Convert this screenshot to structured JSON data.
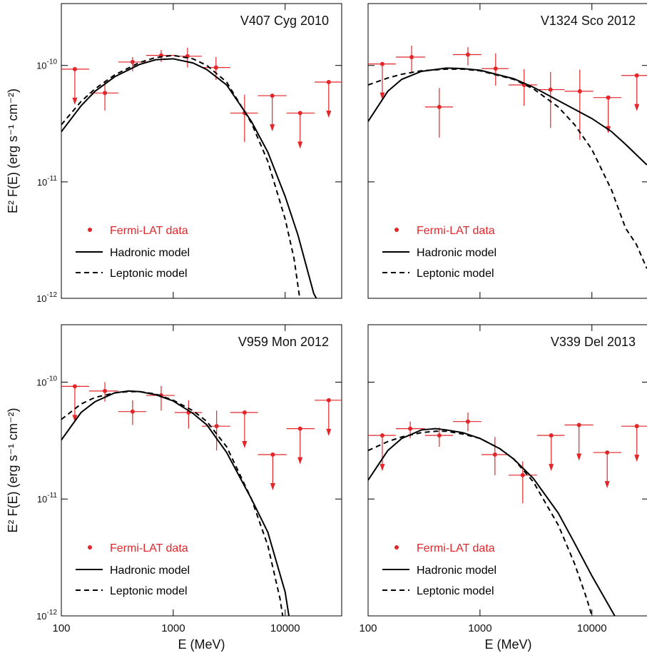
{
  "chart_data": [
    {
      "type": "scatter",
      "title": "V407 Cyg 2010",
      "ylabel": "E² F(E) (erg s⁻¹ cm⁻²)",
      "xscale": "log",
      "yscale": "log",
      "xlim": [
        100,
        32000
      ],
      "ylim": [
        1e-12,
        3.4e-10
      ],
      "xticks": [
        100,
        1000,
        10000
      ],
      "xtick_labels": false,
      "yticks": [
        {
          "value": 1e-12,
          "label": "10^-12"
        },
        {
          "value": 1e-11,
          "label": "10^-11"
        },
        {
          "value": 1e-10,
          "label": "10^-10"
        }
      ],
      "legend": "lower left",
      "series": [
        {
          "name": "Fermi-LAT data",
          "type": "scatter",
          "color": "#e2262a",
          "x": [
            132,
            245,
            433,
            780,
            1340,
            2410,
            4340,
            7670,
            13600,
            24500
          ],
          "values": [
            9.3e-11,
            5.8e-11,
            1.07e-10,
            1.22e-10,
            1.2e-10,
            9.6e-11,
            3.9e-11,
            5.5e-11,
            3.9e-11,
            7.2e-11
          ],
          "x_low": [
            100,
            177,
            323,
            573,
            1030,
            1800,
            3230,
            5700,
            10300,
            18300
          ],
          "x_high": [
            177,
            323,
            573,
            1030,
            1800,
            3230,
            5700,
            10300,
            18300,
            32000
          ],
          "y_low": [
            null,
            4.1e-11,
            8.9e-11,
            1.07e-10,
            9.6e-11,
            7.5e-11,
            2.2e-11,
            null,
            null,
            null
          ],
          "y_high": [
            null,
            7.4e-11,
            1.18e-10,
            1.36e-10,
            1.42e-10,
            1.18e-10,
            5.6e-11,
            null,
            null,
            null
          ]
        },
        {
          "name": "Hadronic model",
          "type": "line",
          "color": "#000000",
          "style": "solid",
          "x": [
            100,
            150,
            200,
            300,
            500,
            700,
            1000,
            1500,
            2000,
            3000,
            5000,
            7000,
            10000,
            13000,
            18000,
            19000
          ],
          "values": [
            2.7e-11,
            4.5e-11,
            6e-11,
            8e-11,
            1.02e-10,
            1.12e-10,
            1.14e-10,
            1.05e-10,
            9.2e-11,
            6.8e-11,
            3.3e-11,
            1.8e-11,
            7.5e-12,
            3.5e-12,
            1.1e-12,
            1e-12
          ]
        },
        {
          "name": "Leptonic model",
          "type": "line",
          "color": "#000000",
          "style": "dashed",
          "x": [
            100,
            150,
            200,
            300,
            500,
            700,
            1000,
            1500,
            2000,
            3000,
            5000,
            7000,
            10000,
            12000,
            13500
          ],
          "values": [
            3.1e-11,
            4.9e-11,
            6.3e-11,
            8.3e-11,
            1.06e-10,
            1.17e-10,
            1.22e-10,
            1.14e-10,
            1e-10,
            7.2e-11,
            3.2e-11,
            1.5e-11,
            4.8e-12,
            2.2e-12,
            1e-12
          ]
        }
      ]
    },
    {
      "type": "scatter",
      "title": "V1324 Sco 2012",
      "xscale": "log",
      "yscale": "log",
      "xlim": [
        100,
        32000
      ],
      "ylim": [
        1e-12,
        3.4e-10
      ],
      "xticks": [
        100,
        1000,
        10000
      ],
      "xtick_labels": false,
      "yticks": [
        1e-12,
        1e-11,
        1e-10
      ],
      "ytick_labels": false,
      "legend": "lower left",
      "series": [
        {
          "name": "Fermi-LAT data",
          "type": "scatter",
          "color": "#e2262a",
          "x": [
            134,
            245,
            433,
            780,
            1380,
            2480,
            4270,
            7800,
            14000,
            25200
          ],
          "values": [
            1.03e-10,
            1.18e-10,
            4.4e-11,
            1.24e-10,
            9.4e-11,
            6.8e-11,
            6.2e-11,
            6e-11,
            5.3e-11,
            8.2e-11
          ],
          "x_low": [
            100,
            177,
            323,
            573,
            1030,
            1800,
            3230,
            5700,
            10300,
            18300
          ],
          "x_high": [
            177,
            323,
            573,
            1030,
            1800,
            3230,
            5700,
            10300,
            18300,
            32000
          ],
          "y_low": [
            null,
            8.8e-11,
            2.4e-11,
            1e-10,
            6.7e-11,
            4.5e-11,
            2.9e-11,
            2.3e-11,
            null,
            null
          ],
          "y_high": [
            null,
            1.48e-10,
            6.4e-11,
            1.44e-10,
            1.27e-10,
            9.3e-11,
            8.8e-11,
            9.2e-11,
            null,
            null
          ]
        },
        {
          "name": "Hadronic model",
          "type": "line",
          "color": "#000000",
          "style": "solid",
          "x": [
            100,
            150,
            200,
            300,
            500,
            700,
            1000,
            2000,
            3000,
            5000,
            7000,
            10000,
            15000,
            20000,
            31000
          ],
          "values": [
            3.3e-11,
            6e-11,
            7.6e-11,
            8.9e-11,
            9.5e-11,
            9.4e-11,
            9.1e-11,
            7.7e-11,
            6.5e-11,
            5e-11,
            4.2e-11,
            3.5e-11,
            2.7e-11,
            2.1e-11,
            1.4e-11
          ]
        },
        {
          "name": "Leptonic model",
          "type": "line",
          "color": "#000000",
          "style": "dashed",
          "x": [
            100,
            150,
            200,
            300,
            500,
            700,
            1000,
            2000,
            3000,
            5000,
            7000,
            10000,
            15000,
            20000,
            25000,
            31000
          ],
          "values": [
            6.8e-11,
            7.8e-11,
            8.4e-11,
            9e-11,
            9.3e-11,
            9.3e-11,
            9e-11,
            7.6e-11,
            6.3e-11,
            4.4e-11,
            3.1e-11,
            1.9e-11,
            8.5e-12,
            4e-12,
            2.9e-12,
            1.8e-12
          ]
        }
      ]
    },
    {
      "type": "scatter",
      "title": "V959 Mon 2012",
      "xlabel": "E (MeV)",
      "ylabel": "E² F(E) (erg s⁻¹ cm⁻²)",
      "xscale": "log",
      "yscale": "log",
      "xlim": [
        100,
        32000
      ],
      "ylim": [
        1e-12,
        3.1e-10
      ],
      "xticks": [
        100,
        1000,
        10000
      ],
      "yticks": [
        {
          "value": 1e-12,
          "label": "10^-12"
        },
        {
          "value": 1e-11,
          "label": "10^-11"
        },
        {
          "value": 1e-10,
          "label": "10^-10"
        }
      ],
      "legend": "lower left",
      "series": [
        {
          "name": "Fermi-LAT data",
          "type": "scatter",
          "color": "#e2262a",
          "x": [
            132,
            245,
            433,
            780,
            1370,
            2440,
            4340,
            7750,
            13600,
            24500
          ],
          "values": [
            9.2e-11,
            8.4e-11,
            5.6e-11,
            7.7e-11,
            5.5e-11,
            4.2e-11,
            5.5e-11,
            2.4e-11,
            4e-11,
            7e-11
          ],
          "x_low": [
            100,
            177,
            323,
            573,
            1030,
            1800,
            3230,
            5700,
            10300,
            18300
          ],
          "x_high": [
            177,
            323,
            573,
            1030,
            1800,
            3230,
            5700,
            10300,
            18300,
            32000
          ],
          "y_low": [
            null,
            6.8e-11,
            4.3e-11,
            5.7e-11,
            4e-11,
            2.6e-11,
            null,
            null,
            null,
            null
          ],
          "y_high": [
            null,
            1e-10,
            7e-11,
            9.3e-11,
            7e-11,
            5.7e-11,
            null,
            null,
            null,
            null
          ]
        },
        {
          "name": "Hadronic model",
          "type": "line",
          "color": "#000000",
          "style": "solid",
          "x": [
            100,
            150,
            200,
            300,
            400,
            500,
            700,
            1000,
            1500,
            2000,
            3000,
            5000,
            7000,
            10000,
            10800
          ],
          "values": [
            3.2e-11,
            5.5e-11,
            6.8e-11,
            8.1e-11,
            8.4e-11,
            8.3e-11,
            7.8e-11,
            6.9e-11,
            5.4e-11,
            4.3e-11,
            2.5e-11,
            1e-11,
            5.2e-12,
            1.6e-12,
            1e-12
          ]
        },
        {
          "name": "Leptonic model",
          "type": "line",
          "color": "#000000",
          "style": "dashed",
          "x": [
            100,
            150,
            200,
            300,
            400,
            500,
            700,
            1000,
            1500,
            2000,
            3000,
            5000,
            7000,
            9000,
            9500
          ],
          "values": [
            4.8e-11,
            6.5e-11,
            7.4e-11,
            8.1e-11,
            8.3e-11,
            8.3e-11,
            7.9e-11,
            7e-11,
            5.7e-11,
            4.6e-11,
            2.8e-11,
            1e-11,
            4e-12,
            1.4e-12,
            1e-12
          ]
        }
      ]
    },
    {
      "type": "scatter",
      "title": "V339 Del 2013",
      "xlabel": "E (MeV)",
      "xscale": "log",
      "yscale": "log",
      "xlim": [
        100,
        32000
      ],
      "ylim": [
        1e-12,
        3.1e-10
      ],
      "xticks": [
        100,
        1000,
        10000
      ],
      "yticks": [
        1e-12,
        1e-11,
        1e-10
      ],
      "ytick_labels": false,
      "legend": "lower left",
      "series": [
        {
          "name": "Fermi-LAT data",
          "type": "scatter",
          "color": "#e2262a",
          "x": [
            134,
            238,
            433,
            780,
            1360,
            2410,
            4330,
            7670,
            13700,
            25200
          ],
          "values": [
            3.5e-11,
            4e-11,
            3.5e-11,
            4.6e-11,
            2.4e-11,
            1.6e-11,
            3.5e-11,
            4.3e-11,
            2.5e-11,
            4.2e-11
          ],
          "x_low": [
            100,
            177,
            323,
            573,
            1030,
            1800,
            3230,
            5700,
            10300,
            18300
          ],
          "x_high": [
            177,
            323,
            573,
            1030,
            1800,
            3230,
            5700,
            10300,
            18300,
            32000
          ],
          "y_low": [
            null,
            3.3e-11,
            2.8e-11,
            3.8e-11,
            1.6e-11,
            9.2e-12,
            null,
            null,
            null,
            null
          ],
          "y_high": [
            null,
            4.6e-11,
            4.1e-11,
            5.5e-11,
            3.4e-11,
            2.1e-11,
            null,
            null,
            null,
            null
          ]
        },
        {
          "name": "Hadronic model",
          "type": "line",
          "color": "#000000",
          "style": "solid",
          "x": [
            100,
            150,
            200,
            300,
            400,
            500,
            700,
            1000,
            1500,
            2000,
            3000,
            5000,
            7000,
            10000,
            16000
          ],
          "values": [
            1.45e-11,
            2.6e-11,
            3.3e-11,
            3.9e-11,
            4e-11,
            3.9e-11,
            3.7e-11,
            3.3e-11,
            2.7e-11,
            2.2e-11,
            1.5e-11,
            7.6e-12,
            4.2e-12,
            2.2e-12,
            1e-12
          ]
        },
        {
          "name": "Leptonic model",
          "type": "line",
          "color": "#000000",
          "style": "dashed",
          "x": [
            100,
            150,
            200,
            300,
            400,
            500,
            700,
            1000,
            1500,
            2000,
            3000,
            5000,
            7000,
            9000,
            10000
          ],
          "values": [
            2.6e-11,
            3.1e-11,
            3.4e-11,
            3.7e-11,
            3.8e-11,
            3.8e-11,
            3.6e-11,
            3.3e-11,
            2.7e-11,
            2.2e-11,
            1.4e-11,
            6e-12,
            2.8e-12,
            1.4e-12,
            1e-12
          ]
        }
      ]
    }
  ]
}
